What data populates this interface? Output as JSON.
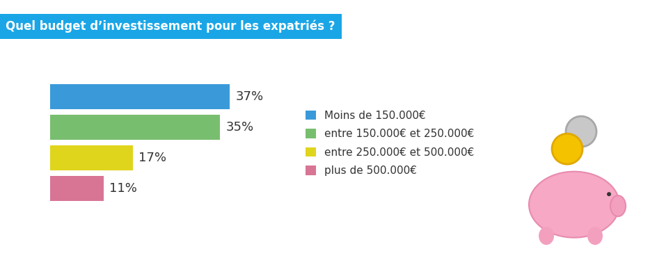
{
  "chart_data": {
    "type": "bar",
    "orientation": "horizontal",
    "title": "Quel budget d’investissement pour les expatriés ?",
    "categories": [
      "Moins de 150.000€",
      "entre 150.000€ et 250.000€",
      "entre 250.000€ et 500.000€",
      "plus de 500.000€"
    ],
    "values": [
      37,
      35,
      17,
      11
    ],
    "value_labels": [
      "37%",
      "35%",
      "17%",
      "11%"
    ],
    "colors": [
      "#3a9ad9",
      "#78be6f",
      "#e0d51d",
      "#d87494"
    ],
    "xlim": [
      0,
      40
    ],
    "data_labels": true,
    "tick_labels": false,
    "grid": false,
    "legend": "center left"
  }
}
